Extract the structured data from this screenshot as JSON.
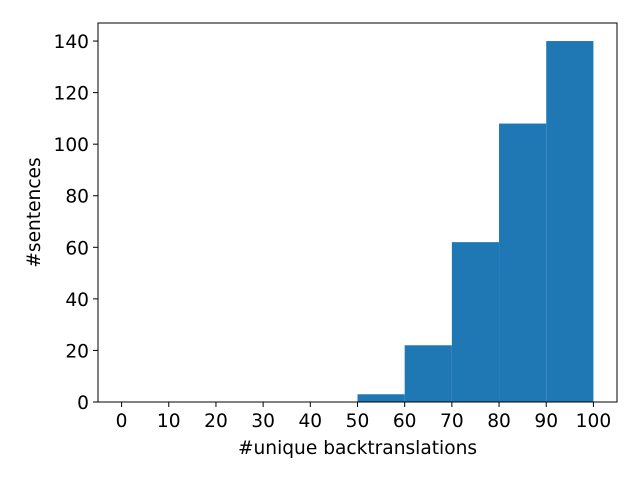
{
  "chart_data": {
    "type": "bar",
    "subtype": "histogram",
    "title": "",
    "xlabel": "#unique backtranslations",
    "ylabel": "#sentences",
    "bin_edges": [
      50,
      60,
      70,
      80,
      90,
      100
    ],
    "values": [
      3,
      22,
      62,
      108,
      140
    ],
    "xlim": [
      -5,
      105
    ],
    "ylim": [
      0,
      147
    ],
    "x_ticks": [
      0,
      10,
      20,
      30,
      40,
      50,
      60,
      70,
      80,
      90,
      100
    ],
    "y_ticks": [
      0,
      20,
      40,
      60,
      80,
      100,
      120,
      140
    ],
    "x_tick_labels": [
      "0",
      "10",
      "20",
      "30",
      "40",
      "50",
      "60",
      "70",
      "80",
      "90",
      "100"
    ],
    "y_tick_labels": [
      "0",
      "20",
      "40",
      "60",
      "80",
      "100",
      "120",
      "140"
    ],
    "bar_color": "#1f77b4",
    "grid": false,
    "legend": "none"
  }
}
